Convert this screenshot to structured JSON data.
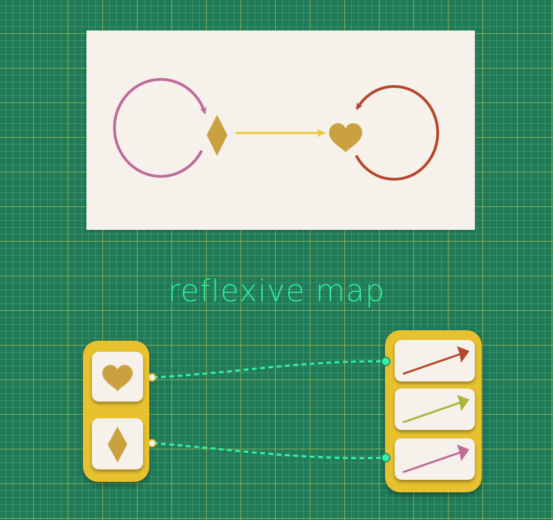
{
  "title": "reflexive map",
  "colors": {
    "background": "#1f7a5a",
    "panel": "#f6f1ea",
    "shape_gold": "#c9a13e",
    "diamond_loop": "#bf6a9a",
    "heart_loop": "#b5462a",
    "map_arrow": "#ecc838",
    "set_frame": "#e8c12e",
    "connector": "#35f0a8"
  },
  "diagram": {
    "objects": [
      {
        "name": "diamond",
        "icon": "diamond-icon"
      },
      {
        "name": "heart",
        "icon": "heart-icon"
      }
    ],
    "arrows": [
      {
        "from": "diamond",
        "to": "diamond",
        "kind": "loop",
        "color": "#bf6a9a"
      },
      {
        "from": "diamond",
        "to": "heart",
        "kind": "straight",
        "color": "#ecc838"
      },
      {
        "from": "heart",
        "to": "heart",
        "kind": "loop",
        "color": "#b5462a"
      }
    ]
  },
  "mapping": {
    "source_set": [
      "heart-icon",
      "diamond-icon"
    ],
    "target_set": [
      {
        "icon": "arrow-icon",
        "color": "#b5462a"
      },
      {
        "icon": "arrow-icon",
        "color": "#a8b83a"
      },
      {
        "icon": "arrow-icon",
        "color": "#bf6a9a"
      }
    ],
    "links": [
      {
        "from": "heart-icon",
        "to": 0
      },
      {
        "from": "diamond-icon",
        "to": 2
      }
    ]
  }
}
